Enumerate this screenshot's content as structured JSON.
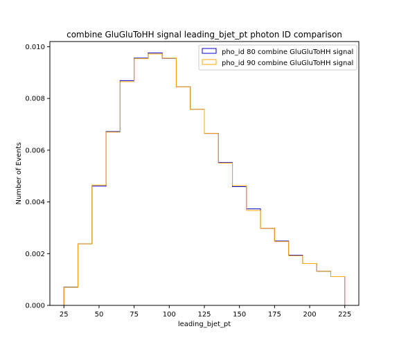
{
  "chart_data": {
    "type": "line",
    "style": "step-histogram",
    "title": "combine GluGluToHH signal leading_bjet_pt photon ID comparison",
    "xlabel": "leading_bjet_pt",
    "ylabel": "Number of Events",
    "xlim": [
      15,
      235
    ],
    "ylim": [
      0,
      0.0102
    ],
    "xticks": [
      25,
      50,
      75,
      100,
      125,
      150,
      175,
      200,
      225
    ],
    "xtick_labels": [
      "25",
      "50",
      "75",
      "100",
      "125",
      "150",
      "175",
      "200",
      "225"
    ],
    "yticks": [
      0.0,
      0.002,
      0.004,
      0.006,
      0.008,
      0.01
    ],
    "ytick_labels": [
      "0.000",
      "0.002",
      "0.004",
      "0.006",
      "0.008",
      "0.010"
    ],
    "bin_edges": [
      25,
      35,
      45,
      55,
      65,
      75,
      85,
      95,
      105,
      115,
      125,
      135,
      145,
      155,
      165,
      175,
      185,
      195,
      205,
      215,
      225
    ],
    "legend_position": "top-right",
    "grid": false,
    "series": [
      {
        "name": "pho_id 80 combine GluGluToHH signal",
        "color": "#0000cc",
        "values": [
          0.00071,
          0.00238,
          0.00461,
          0.00672,
          0.00869,
          0.00956,
          0.00976,
          0.00955,
          0.00845,
          0.00758,
          0.00665,
          0.00552,
          0.00459,
          0.00373,
          0.00298,
          0.00249,
          0.00194,
          0.00162,
          0.00132,
          0.00111
        ]
      },
      {
        "name": "pho_id 90 combine GluGluToHH signal",
        "color": "#ffa500",
        "values": [
          0.0007,
          0.00238,
          0.00465,
          0.0067,
          0.00865,
          0.00954,
          0.00972,
          0.00956,
          0.00845,
          0.00758,
          0.00665,
          0.0055,
          0.00463,
          0.00367,
          0.00298,
          0.00247,
          0.00192,
          0.00162,
          0.00132,
          0.00111
        ]
      }
    ]
  }
}
